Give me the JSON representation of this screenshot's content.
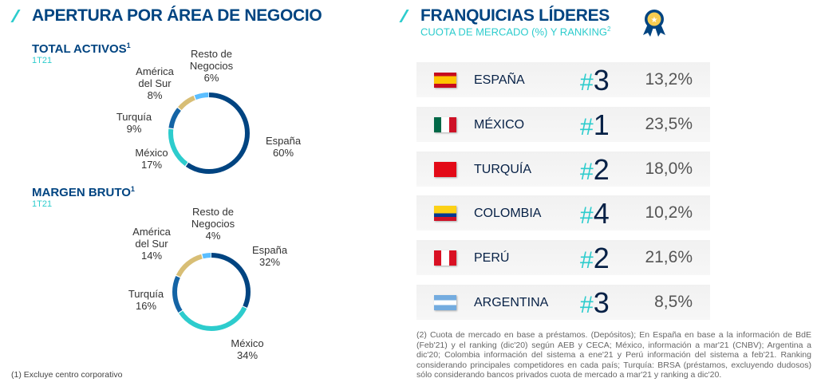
{
  "left": {
    "title": "APERTURA POR ÁREA DE NEGOCIO",
    "footnote": "(1) Excluye centro corporativo"
  },
  "chart_data": [
    {
      "type": "pie",
      "donut": true,
      "title": "TOTAL ACTIVOS",
      "title_sup": "1",
      "subtitle": "1T21",
      "categories": [
        "España",
        "México",
        "Turquía",
        "América del Sur",
        "Resto de Negocios"
      ],
      "values": [
        60,
        17,
        9,
        8,
        6
      ],
      "labels": [
        "60%",
        "17%",
        "9%",
        "8%",
        "6%"
      ],
      "colors": [
        "#004481",
        "#2dcccd",
        "#1464a5",
        "#d8be75",
        "#5bbeff"
      ]
    },
    {
      "type": "pie",
      "donut": true,
      "title": "MARGEN BRUTO",
      "title_sup": "1",
      "subtitle": "1T21",
      "categories": [
        "España",
        "México",
        "Turquía",
        "América del Sur",
        "Resto de Negocios"
      ],
      "values": [
        32,
        34,
        16,
        14,
        4
      ],
      "labels": [
        "32%",
        "34%",
        "16%",
        "14%",
        "4%"
      ],
      "colors": [
        "#004481",
        "#2dcccd",
        "#1464a5",
        "#d8be75",
        "#5bbeff"
      ]
    }
  ],
  "right": {
    "title": "FRANQUICIAS LÍDERES",
    "subtitle": "CUOTA DE MERCADO (%) Y RANKING",
    "subtitle_sup": "2",
    "icon": "award-ribbon-icon",
    "rows": [
      {
        "country": "ESPAÑA",
        "hash": "#",
        "rank": "3",
        "share": "13,2%",
        "flag": "spain"
      },
      {
        "country": "MÉXICO",
        "hash": "#",
        "rank": "1",
        "share": "23,5%",
        "flag": "mexico"
      },
      {
        "country": "TURQUÍA",
        "hash": "#",
        "rank": "2",
        "share": "18,0%",
        "flag": "turkey"
      },
      {
        "country": "COLOMBIA",
        "hash": "#",
        "rank": "4",
        "share": "10,2%",
        "flag": "colombia"
      },
      {
        "country": "PERÚ",
        "hash": "#",
        "rank": "2",
        "share": "21,6%",
        "flag": "peru"
      },
      {
        "country": "ARGENTINA",
        "hash": "#",
        "rank": "3",
        "share": "8,5%",
        "flag": "argentina"
      }
    ],
    "footnote": "(2) Cuota de mercado en base a préstamos. (Depósitos); En España en base a la información de BdE (Feb'21) y el ranking (dic'20) según AEB y CECA; México, información a mar'21 (CNBV); Argentina a dic'20; Colombia información del sistema a ene'21 y Perú información del sistema a feb'21. Ranking considerando principales competidores en cada país; Turquía: BRSA (préstamos, excluyendo dudosos) sólo considerando bancos privados cuota de mercado a mar'21 y ranking a dic'20."
  }
}
